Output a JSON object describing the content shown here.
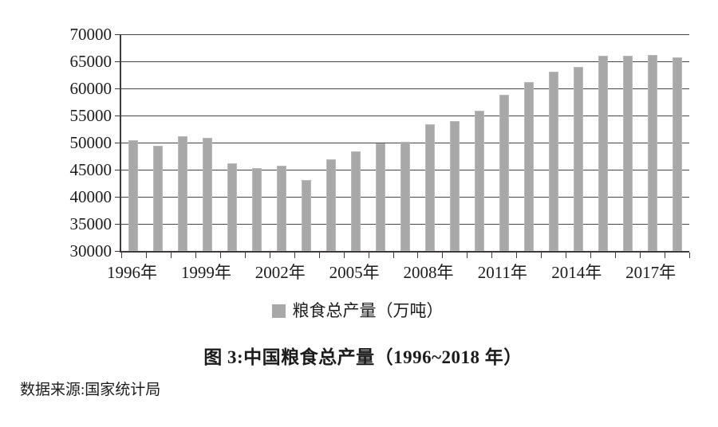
{
  "figure": {
    "title": "图 3:中国粮食总产量（1996~2018 年）",
    "source": "数据来源:国家统计局"
  },
  "legend": {
    "label": "粮食总产量（万吨）",
    "marker_color": "#a8a8a8"
  },
  "chart_data": {
    "type": "bar",
    "title": "图 3:中国粮食总产量（1996~2018 年）",
    "series_name": "粮食总产量（万吨）",
    "categories": [
      "1996",
      "1997",
      "1998",
      "1999",
      "2000",
      "2001",
      "2002",
      "2003",
      "2004",
      "2005",
      "2006",
      "2007",
      "2008",
      "2009",
      "2010",
      "2011",
      "2012",
      "2013",
      "2014",
      "2015",
      "2016",
      "2017",
      "2018"
    ],
    "values": [
      50454,
      49417,
      51230,
      50839,
      46218,
      45264,
      45706,
      43070,
      46947,
      48402,
      49804,
      50160,
      53434,
      53941,
      55911,
      58849,
      61223,
      63048,
      63965,
      66060,
      66044,
      66161,
      65789
    ],
    "xlabel": "",
    "ylabel": "",
    "ylim": [
      30000,
      70000
    ],
    "ytick_step": 5000,
    "yticks": [
      30000,
      35000,
      40000,
      45000,
      50000,
      55000,
      60000,
      65000,
      70000
    ],
    "xtick_label_every": 3,
    "xtick_label_suffix": "年",
    "xtick_labels_shown": [
      "1996年",
      "1999年",
      "2002年",
      "2005年",
      "2008年",
      "2011年",
      "2014年",
      "2017年"
    ],
    "grid": true,
    "legend_position": "bottom",
    "bar_color": "#a8a8a8",
    "axis_color": "#3f3b3a",
    "source": "数据来源:国家统计局"
  }
}
